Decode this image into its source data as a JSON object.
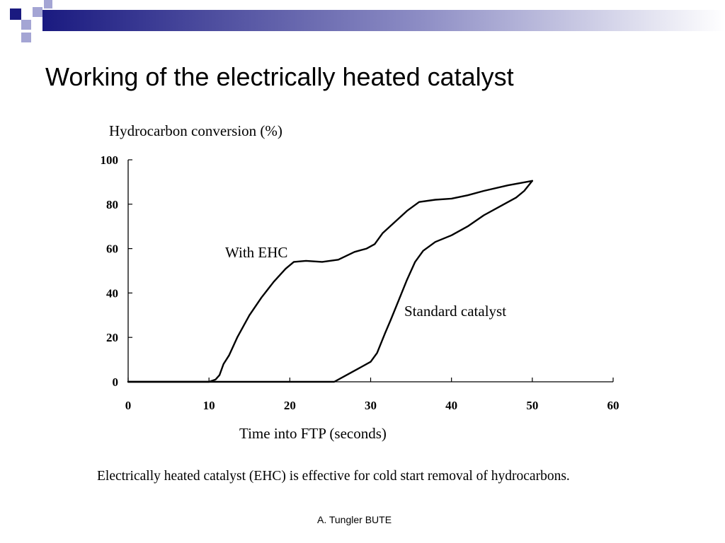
{
  "slide": {
    "title": "Working of the electrically heated catalyst",
    "footer": "A. Tungler BUTE",
    "accent_colors": [
      "#1a1a80",
      "#9fa0cf",
      "#5c5ca8"
    ]
  },
  "chart_data": {
    "type": "line",
    "title": "",
    "ylabel": "Hydrocarbon conversion (%)",
    "xlabel": "Time into FTP (seconds)",
    "caption": "Electrically heated catalyst (EHC) is effective for cold start removal of hydrocarbons.",
    "xlim": [
      0,
      60
    ],
    "ylim": [
      0,
      100
    ],
    "xticks": [
      0,
      10,
      20,
      30,
      40,
      50,
      60
    ],
    "yticks": [
      0,
      20,
      40,
      60,
      80,
      100
    ],
    "grid": false,
    "series": [
      {
        "name": "With EHC",
        "color": "#000000",
        "points": [
          [
            0,
            0
          ],
          [
            5,
            0
          ],
          [
            10,
            0
          ],
          [
            10.8,
            1
          ],
          [
            11.3,
            3
          ],
          [
            11.8,
            8
          ],
          [
            12.5,
            12
          ],
          [
            13.5,
            20
          ],
          [
            15,
            30
          ],
          [
            16.5,
            38
          ],
          [
            18,
            45
          ],
          [
            19.5,
            51
          ],
          [
            20.5,
            54
          ],
          [
            22,
            54.5
          ],
          [
            24,
            54
          ],
          [
            26,
            55
          ],
          [
            28,
            58.5
          ],
          [
            29.5,
            60
          ],
          [
            30.5,
            62
          ],
          [
            31.5,
            67
          ],
          [
            33,
            72
          ],
          [
            34.5,
            77
          ],
          [
            36,
            81
          ],
          [
            38,
            82
          ],
          [
            40,
            82.5
          ],
          [
            42,
            84
          ],
          [
            44,
            86
          ],
          [
            47,
            88.5
          ],
          [
            50,
            90.5
          ]
        ]
      },
      {
        "name": "Standard catalyst",
        "color": "#000000",
        "points": [
          [
            0,
            0
          ],
          [
            10,
            0
          ],
          [
            20,
            0
          ],
          [
            24,
            0
          ],
          [
            25.5,
            0
          ],
          [
            27,
            3
          ],
          [
            28.5,
            6
          ],
          [
            30,
            9
          ],
          [
            30.8,
            13
          ],
          [
            31.8,
            22
          ],
          [
            32.5,
            28
          ],
          [
            33.5,
            37
          ],
          [
            34.5,
            46
          ],
          [
            35.5,
            54
          ],
          [
            36.5,
            59
          ],
          [
            38,
            63
          ],
          [
            40,
            66
          ],
          [
            42,
            70
          ],
          [
            44,
            75
          ],
          [
            46,
            79
          ],
          [
            48,
            83
          ],
          [
            49,
            86
          ],
          [
            50,
            90.5
          ]
        ]
      }
    ]
  }
}
